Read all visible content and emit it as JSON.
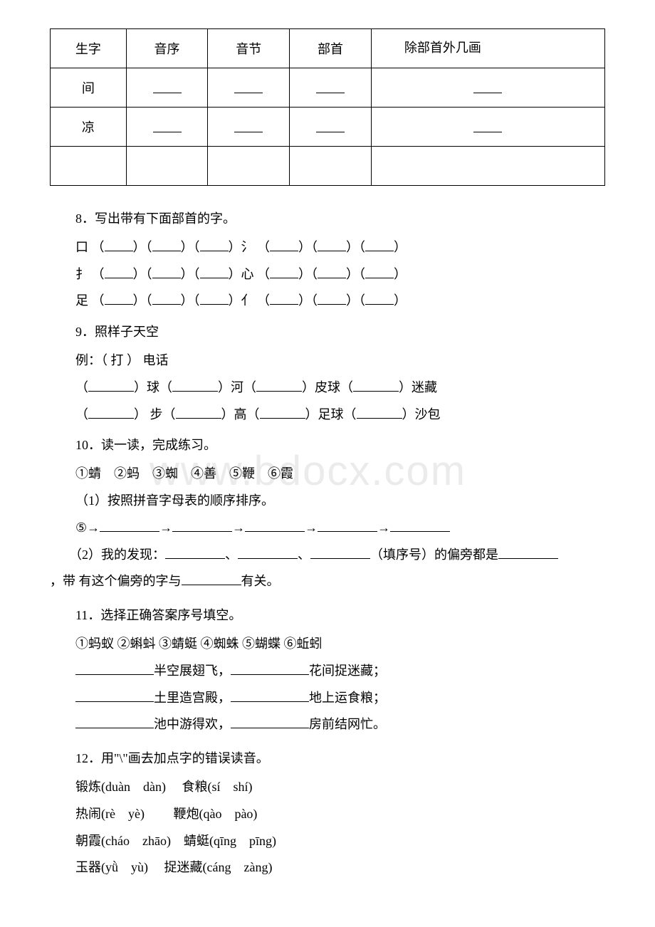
{
  "table": {
    "headers": [
      "生字",
      "音序",
      "音节",
      "部首",
      "除部首外几画"
    ],
    "rows": [
      {
        "char": "间"
      },
      {
        "char": "凉"
      },
      {
        "char": ""
      }
    ]
  },
  "q8": {
    "title": "8．写出带有下面部首的字。",
    "radicals": [
      "口",
      "氵",
      "扌",
      "心",
      "足",
      "亻"
    ]
  },
  "q9": {
    "title": "9．照样子天空",
    "example_label": "例：（ 打 ） 电话",
    "row1": [
      "球",
      "河",
      "皮球",
      "迷藏"
    ],
    "row2": [
      "步",
      "高",
      "足球",
      "沙包"
    ]
  },
  "q10": {
    "title": "10．读一读，完成练习。",
    "items_line": "①蜻　②蚂　③蜘　④善　⑤鞭　⑥霞",
    "sub1": "（1）按照拼音字母表的顺序排序。",
    "start": "⑤→",
    "sub2_a": "（2）我的发现：",
    "sub2_b": "（填序号）的偏旁都是",
    "sub2_c": "，带 有这个偏旁的字与",
    "sub2_d": "有关。"
  },
  "q11": {
    "title": "11．选择正确答案序号填空。",
    "options": "①蚂蚁 ②蝌蚪 ③蜻蜓 ④蜘蛛 ⑤蝴蝶 ⑥蚯蚓",
    "lines": [
      {
        "a": "半空展翅飞，",
        "b": "花间捉迷藏；"
      },
      {
        "a": "土里造宫殿，",
        "b": "地上运食粮；"
      },
      {
        "a": "池中游得欢，",
        "b": "房前结网忙。"
      }
    ]
  },
  "q12": {
    "title": "12．用\"\\\"画去加点字的错误读音。",
    "lines": [
      "锻炼(duàn　dàn)　 食粮(sí　shí)",
      "热闹(rè　yè)　　  鞭炮(qào　pào)",
      "朝霞(cháo　zhāo)　蜻蜓(qīng　pīng)",
      "玉器(yǜ　yù)　  捉迷藏(cáng　zàng)"
    ]
  },
  "watermark": "www.bdocx.com"
}
